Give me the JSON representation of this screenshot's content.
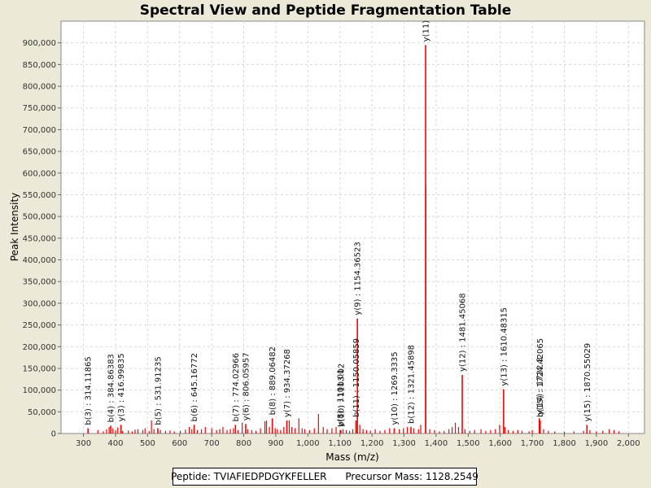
{
  "chart_data": {
    "type": "bar",
    "title": "Spectral View and Peptide Fragmentation Table",
    "xlabel": "Mass (m/z)",
    "ylabel": "Peak Intensity",
    "xlim": [
      230,
      2050
    ],
    "ylim": [
      0,
      950000
    ],
    "xticks": [
      300,
      400,
      500,
      600,
      700,
      800,
      900,
      1000,
      1100,
      1200,
      1300,
      1400,
      1500,
      1600,
      1700,
      1800,
      1900,
      2000
    ],
    "xtick_labels": [
      "300",
      "400",
      "500",
      "600",
      "700",
      "800",
      "900",
      "1,000",
      "1,100",
      "1,200",
      "1,300",
      "1,400",
      "1,500",
      "1,600",
      "1,700",
      "1,800",
      "1,900",
      "2,000"
    ],
    "yticks": [
      0,
      50000,
      100000,
      150000,
      200000,
      250000,
      300000,
      350000,
      400000,
      450000,
      500000,
      550000,
      600000,
      650000,
      700000,
      750000,
      800000,
      850000,
      900000
    ],
    "ytick_labels": [
      "0",
      "50,000",
      "100,000",
      "150,000",
      "200,000",
      "250,000",
      "300,000",
      "350,000",
      "400,000",
      "450,000",
      "500,000",
      "550,000",
      "600,000",
      "650,000",
      "700,000",
      "750,000",
      "800,000",
      "850,000",
      "900,000"
    ],
    "grid": true,
    "peak_color": "#FF0000",
    "annotated_peaks": [
      {
        "mz": 314.11865,
        "intensity": 12000,
        "label": "b(3) : 314.11865"
      },
      {
        "mz": 384.86383,
        "intensity": 18000,
        "label": "b(4) : 384.86383"
      },
      {
        "mz": 416.99835,
        "intensity": 20000,
        "label": "y(3) : 416.99835"
      },
      {
        "mz": 531.91235,
        "intensity": 12000,
        "label": "b(5) : 531.91235"
      },
      {
        "mz": 645.16772,
        "intensity": 20000,
        "label": "b(6) : 645.16772"
      },
      {
        "mz": 774.02966,
        "intensity": 20000,
        "label": "b(7) : 774.02966"
      },
      {
        "mz": 806.05957,
        "intensity": 22000,
        "label": "y(6) : 806.05957"
      },
      {
        "mz": 889.06482,
        "intensity": 35000,
        "label": "b(8) : 889.06482"
      },
      {
        "mz": 934.37268,
        "intensity": 30000,
        "label": "y(7) : 934.37268"
      },
      {
        "mz": 1101.0,
        "intensity": 8000,
        "label": "y(8) : 1101.01"
      },
      {
        "mz": 1103.0,
        "intensity": 8000,
        "label": "b(10) : 1103.02"
      },
      {
        "mz": 1154.36523,
        "intensity": 265000,
        "label": "y(9) : 1154.36523"
      },
      {
        "mz": 1150.05859,
        "intensity": 30000,
        "label": "b(11) : 1150.05859"
      },
      {
        "mz": 1269.3335,
        "intensity": 12000,
        "label": "y(10) : 1269.3335"
      },
      {
        "mz": 1321.45898,
        "intensity": 15000,
        "label": "b(12) : 1321.45898"
      },
      {
        "mz": 1367.2,
        "intensity": 895000,
        "label": "y(11)"
      },
      {
        "mz": 1481.45068,
        "intensity": 135000,
        "label": "y(12) : 1481.45068"
      },
      {
        "mz": 1610.48315,
        "intensity": 102000,
        "label": "y(13) : 1610.48315"
      },
      {
        "mz": 1722.0,
        "intensity": 35000,
        "label": "y(14) : 1722.3"
      },
      {
        "mz": 1724.42065,
        "intensity": 30000,
        "label": "b(15) : 1724.42065"
      },
      {
        "mz": 1870.55029,
        "intensity": 20000,
        "label": "y(15) : 1870.55029"
      }
    ],
    "unannotated_peaks": [
      [
        345,
        8000
      ],
      [
        362,
        5000
      ],
      [
        372,
        10000
      ],
      [
        380,
        15000
      ],
      [
        392,
        12000
      ],
      [
        400,
        8000
      ],
      [
        407,
        14000
      ],
      [
        422,
        6000
      ],
      [
        440,
        7000
      ],
      [
        452,
        5000
      ],
      [
        461,
        9000
      ],
      [
        470,
        10000
      ],
      [
        485,
        8000
      ],
      [
        492,
        12000
      ],
      [
        505,
        6000
      ],
      [
        512,
        30000
      ],
      [
        520,
        10000
      ],
      [
        540,
        8000
      ],
      [
        556,
        6000
      ],
      [
        570,
        7000
      ],
      [
        583,
        5000
      ],
      [
        602,
        6000
      ],
      [
        618,
        9000
      ],
      [
        630,
        15000
      ],
      [
        638,
        10000
      ],
      [
        655,
        8000
      ],
      [
        668,
        10000
      ],
      [
        680,
        15000
      ],
      [
        700,
        12000
      ],
      [
        715,
        8000
      ],
      [
        725,
        10000
      ],
      [
        735,
        15000
      ],
      [
        748,
        8000
      ],
      [
        758,
        10000
      ],
      [
        768,
        12000
      ],
      [
        782,
        8000
      ],
      [
        795,
        25000
      ],
      [
        812,
        10000
      ],
      [
        825,
        8000
      ],
      [
        838,
        6000
      ],
      [
        852,
        12000
      ],
      [
        866,
        28000
      ],
      [
        871,
        30000
      ],
      [
        880,
        15000
      ],
      [
        898,
        12000
      ],
      [
        905,
        10000
      ],
      [
        915,
        8000
      ],
      [
        925,
        15000
      ],
      [
        942,
        30000
      ],
      [
        950,
        15000
      ],
      [
        960,
        12000
      ],
      [
        972,
        35000
      ],
      [
        982,
        12000
      ],
      [
        990,
        10000
      ],
      [
        1005,
        8000
      ],
      [
        1020,
        12000
      ],
      [
        1033,
        45000
      ],
      [
        1048,
        15000
      ],
      [
        1060,
        10000
      ],
      [
        1075,
        12000
      ],
      [
        1088,
        15000
      ],
      [
        1110,
        10000
      ],
      [
        1120,
        8000
      ],
      [
        1130,
        6000
      ],
      [
        1140,
        10000
      ],
      [
        1162,
        20000
      ],
      [
        1172,
        10000
      ],
      [
        1183,
        8000
      ],
      [
        1195,
        7000
      ],
      [
        1210,
        10000
      ],
      [
        1225,
        6000
      ],
      [
        1240,
        8000
      ],
      [
        1255,
        12000
      ],
      [
        1285,
        10000
      ],
      [
        1298,
        12000
      ],
      [
        1310,
        15000
      ],
      [
        1330,
        12000
      ],
      [
        1345,
        10000
      ],
      [
        1352,
        20000
      ],
      [
        1368,
        570000
      ],
      [
        1380,
        10000
      ],
      [
        1395,
        8000
      ],
      [
        1410,
        5000
      ],
      [
        1425,
        6000
      ],
      [
        1440,
        10000
      ],
      [
        1450,
        15000
      ],
      [
        1460,
        25000
      ],
      [
        1470,
        15000
      ],
      [
        1490,
        10000
      ],
      [
        1505,
        6000
      ],
      [
        1520,
        8000
      ],
      [
        1540,
        10000
      ],
      [
        1555,
        6000
      ],
      [
        1570,
        8000
      ],
      [
        1585,
        10000
      ],
      [
        1598,
        20000
      ],
      [
        1615,
        15000
      ],
      [
        1625,
        8000
      ],
      [
        1640,
        6000
      ],
      [
        1655,
        8000
      ],
      [
        1668,
        6000
      ],
      [
        1690,
        5000
      ],
      [
        1700,
        8000
      ],
      [
        1735,
        10000
      ],
      [
        1750,
        6000
      ],
      [
        1770,
        5000
      ],
      [
        1800,
        4000
      ],
      [
        1830,
        5000
      ],
      [
        1860,
        6000
      ],
      [
        1880,
        8000
      ],
      [
        1900,
        5000
      ],
      [
        1920,
        6000
      ],
      [
        1940,
        10000
      ],
      [
        1955,
        8000
      ],
      [
        1970,
        5000
      ]
    ]
  },
  "footer": {
    "peptide_label": "Peptide:",
    "peptide_value": "TVIAFIEDPDGYKFELLER",
    "precursor_label": "Precursor Mass:",
    "precursor_value": "1128.2549"
  }
}
